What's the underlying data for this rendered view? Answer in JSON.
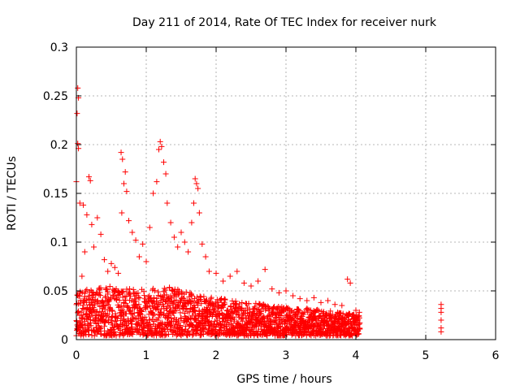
{
  "chart_data": {
    "type": "scatter",
    "title": "Day 211 of 2014, Rate Of TEC Index for receiver nurk",
    "xlabel": "GPS time / hours",
    "ylabel": "ROTI / TECUs",
    "xlim": [
      0,
      6
    ],
    "ylim": [
      0,
      0.3
    ],
    "x_ticks": [
      0,
      1,
      2,
      3,
      4,
      5,
      6
    ],
    "y_ticks": [
      0,
      0.05,
      0.1,
      0.15,
      0.2,
      0.25,
      0.3
    ],
    "x_tick_labels": [
      "0",
      "1",
      "2",
      "3",
      "4",
      "5",
      "6"
    ],
    "y_tick_labels": [
      "0",
      "0.05",
      "0.1",
      "0.15",
      "0.2",
      "0.25",
      "0.3"
    ],
    "grid": true,
    "marker": "plus",
    "series": [
      {
        "name": "ROTI",
        "color": "#ff0000",
        "points": [
          [
            0.02,
            0.258
          ],
          [
            0.03,
            0.248
          ],
          [
            0.01,
            0.232
          ],
          [
            0.02,
            0.201
          ],
          [
            0.03,
            0.196
          ],
          [
            0.0,
            0.162
          ],
          [
            0.05,
            0.14
          ],
          [
            0.1,
            0.138
          ],
          [
            0.18,
            0.167
          ],
          [
            0.2,
            0.163
          ],
          [
            0.15,
            0.128
          ],
          [
            0.22,
            0.118
          ],
          [
            0.12,
            0.09
          ],
          [
            0.25,
            0.095
          ],
          [
            0.3,
            0.125
          ],
          [
            0.35,
            0.108
          ],
          [
            0.4,
            0.082
          ],
          [
            0.08,
            0.065
          ],
          [
            0.45,
            0.07
          ],
          [
            0.5,
            0.078
          ],
          [
            0.55,
            0.074
          ],
          [
            0.6,
            0.068
          ],
          [
            0.64,
            0.192
          ],
          [
            0.66,
            0.185
          ],
          [
            0.7,
            0.172
          ],
          [
            0.68,
            0.16
          ],
          [
            0.72,
            0.152
          ],
          [
            0.65,
            0.13
          ],
          [
            0.75,
            0.122
          ],
          [
            0.8,
            0.11
          ],
          [
            0.85,
            0.102
          ],
          [
            0.9,
            0.085
          ],
          [
            0.95,
            0.098
          ],
          [
            1.0,
            0.08
          ],
          [
            1.05,
            0.115
          ],
          [
            1.1,
            0.15
          ],
          [
            1.15,
            0.162
          ],
          [
            1.18,
            0.195
          ],
          [
            1.2,
            0.203
          ],
          [
            1.22,
            0.198
          ],
          [
            1.25,
            0.182
          ],
          [
            1.28,
            0.17
          ],
          [
            1.3,
            0.14
          ],
          [
            1.35,
            0.12
          ],
          [
            1.4,
            0.105
          ],
          [
            1.45,
            0.095
          ],
          [
            1.5,
            0.11
          ],
          [
            1.55,
            0.1
          ],
          [
            1.6,
            0.09
          ],
          [
            1.65,
            0.12
          ],
          [
            1.68,
            0.14
          ],
          [
            1.7,
            0.165
          ],
          [
            1.72,
            0.16
          ],
          [
            1.74,
            0.155
          ],
          [
            1.76,
            0.13
          ],
          [
            1.8,
            0.098
          ],
          [
            1.85,
            0.085
          ],
          [
            1.9,
            0.07
          ],
          [
            2.0,
            0.068
          ],
          [
            2.1,
            0.06
          ],
          [
            2.2,
            0.065
          ],
          [
            2.3,
            0.07
          ],
          [
            2.4,
            0.058
          ],
          [
            2.5,
            0.055
          ],
          [
            2.6,
            0.06
          ],
          [
            2.7,
            0.072
          ],
          [
            2.8,
            0.052
          ],
          [
            2.9,
            0.048
          ],
          [
            3.0,
            0.05
          ],
          [
            3.1,
            0.045
          ],
          [
            3.2,
            0.042
          ],
          [
            3.3,
            0.04
          ],
          [
            3.4,
            0.043
          ],
          [
            3.5,
            0.038
          ],
          [
            3.6,
            0.04
          ],
          [
            3.7,
            0.036
          ],
          [
            3.8,
            0.035
          ],
          [
            3.88,
            0.062
          ],
          [
            3.92,
            0.058
          ],
          [
            4.0,
            0.03
          ],
          [
            4.05,
            0.028
          ],
          [
            5.22,
            0.036
          ],
          [
            5.22,
            0.032
          ],
          [
            5.22,
            0.028
          ],
          [
            5.22,
            0.02
          ],
          [
            5.22,
            0.012
          ],
          [
            5.22,
            0.008
          ]
        ],
        "band": {
          "x_start": 0.0,
          "x_end": 4.06,
          "step": 0.006,
          "y_floor": 0.004,
          "envelope": [
            [
              0.0,
              0.05
            ],
            [
              0.5,
              0.055
            ],
            [
              1.0,
              0.052
            ],
            [
              1.3,
              0.055
            ],
            [
              1.8,
              0.045
            ],
            [
              2.3,
              0.04
            ],
            [
              2.8,
              0.035
            ],
            [
              3.3,
              0.032
            ],
            [
              3.8,
              0.028
            ],
            [
              4.06,
              0.025
            ]
          ]
        }
      }
    ]
  }
}
